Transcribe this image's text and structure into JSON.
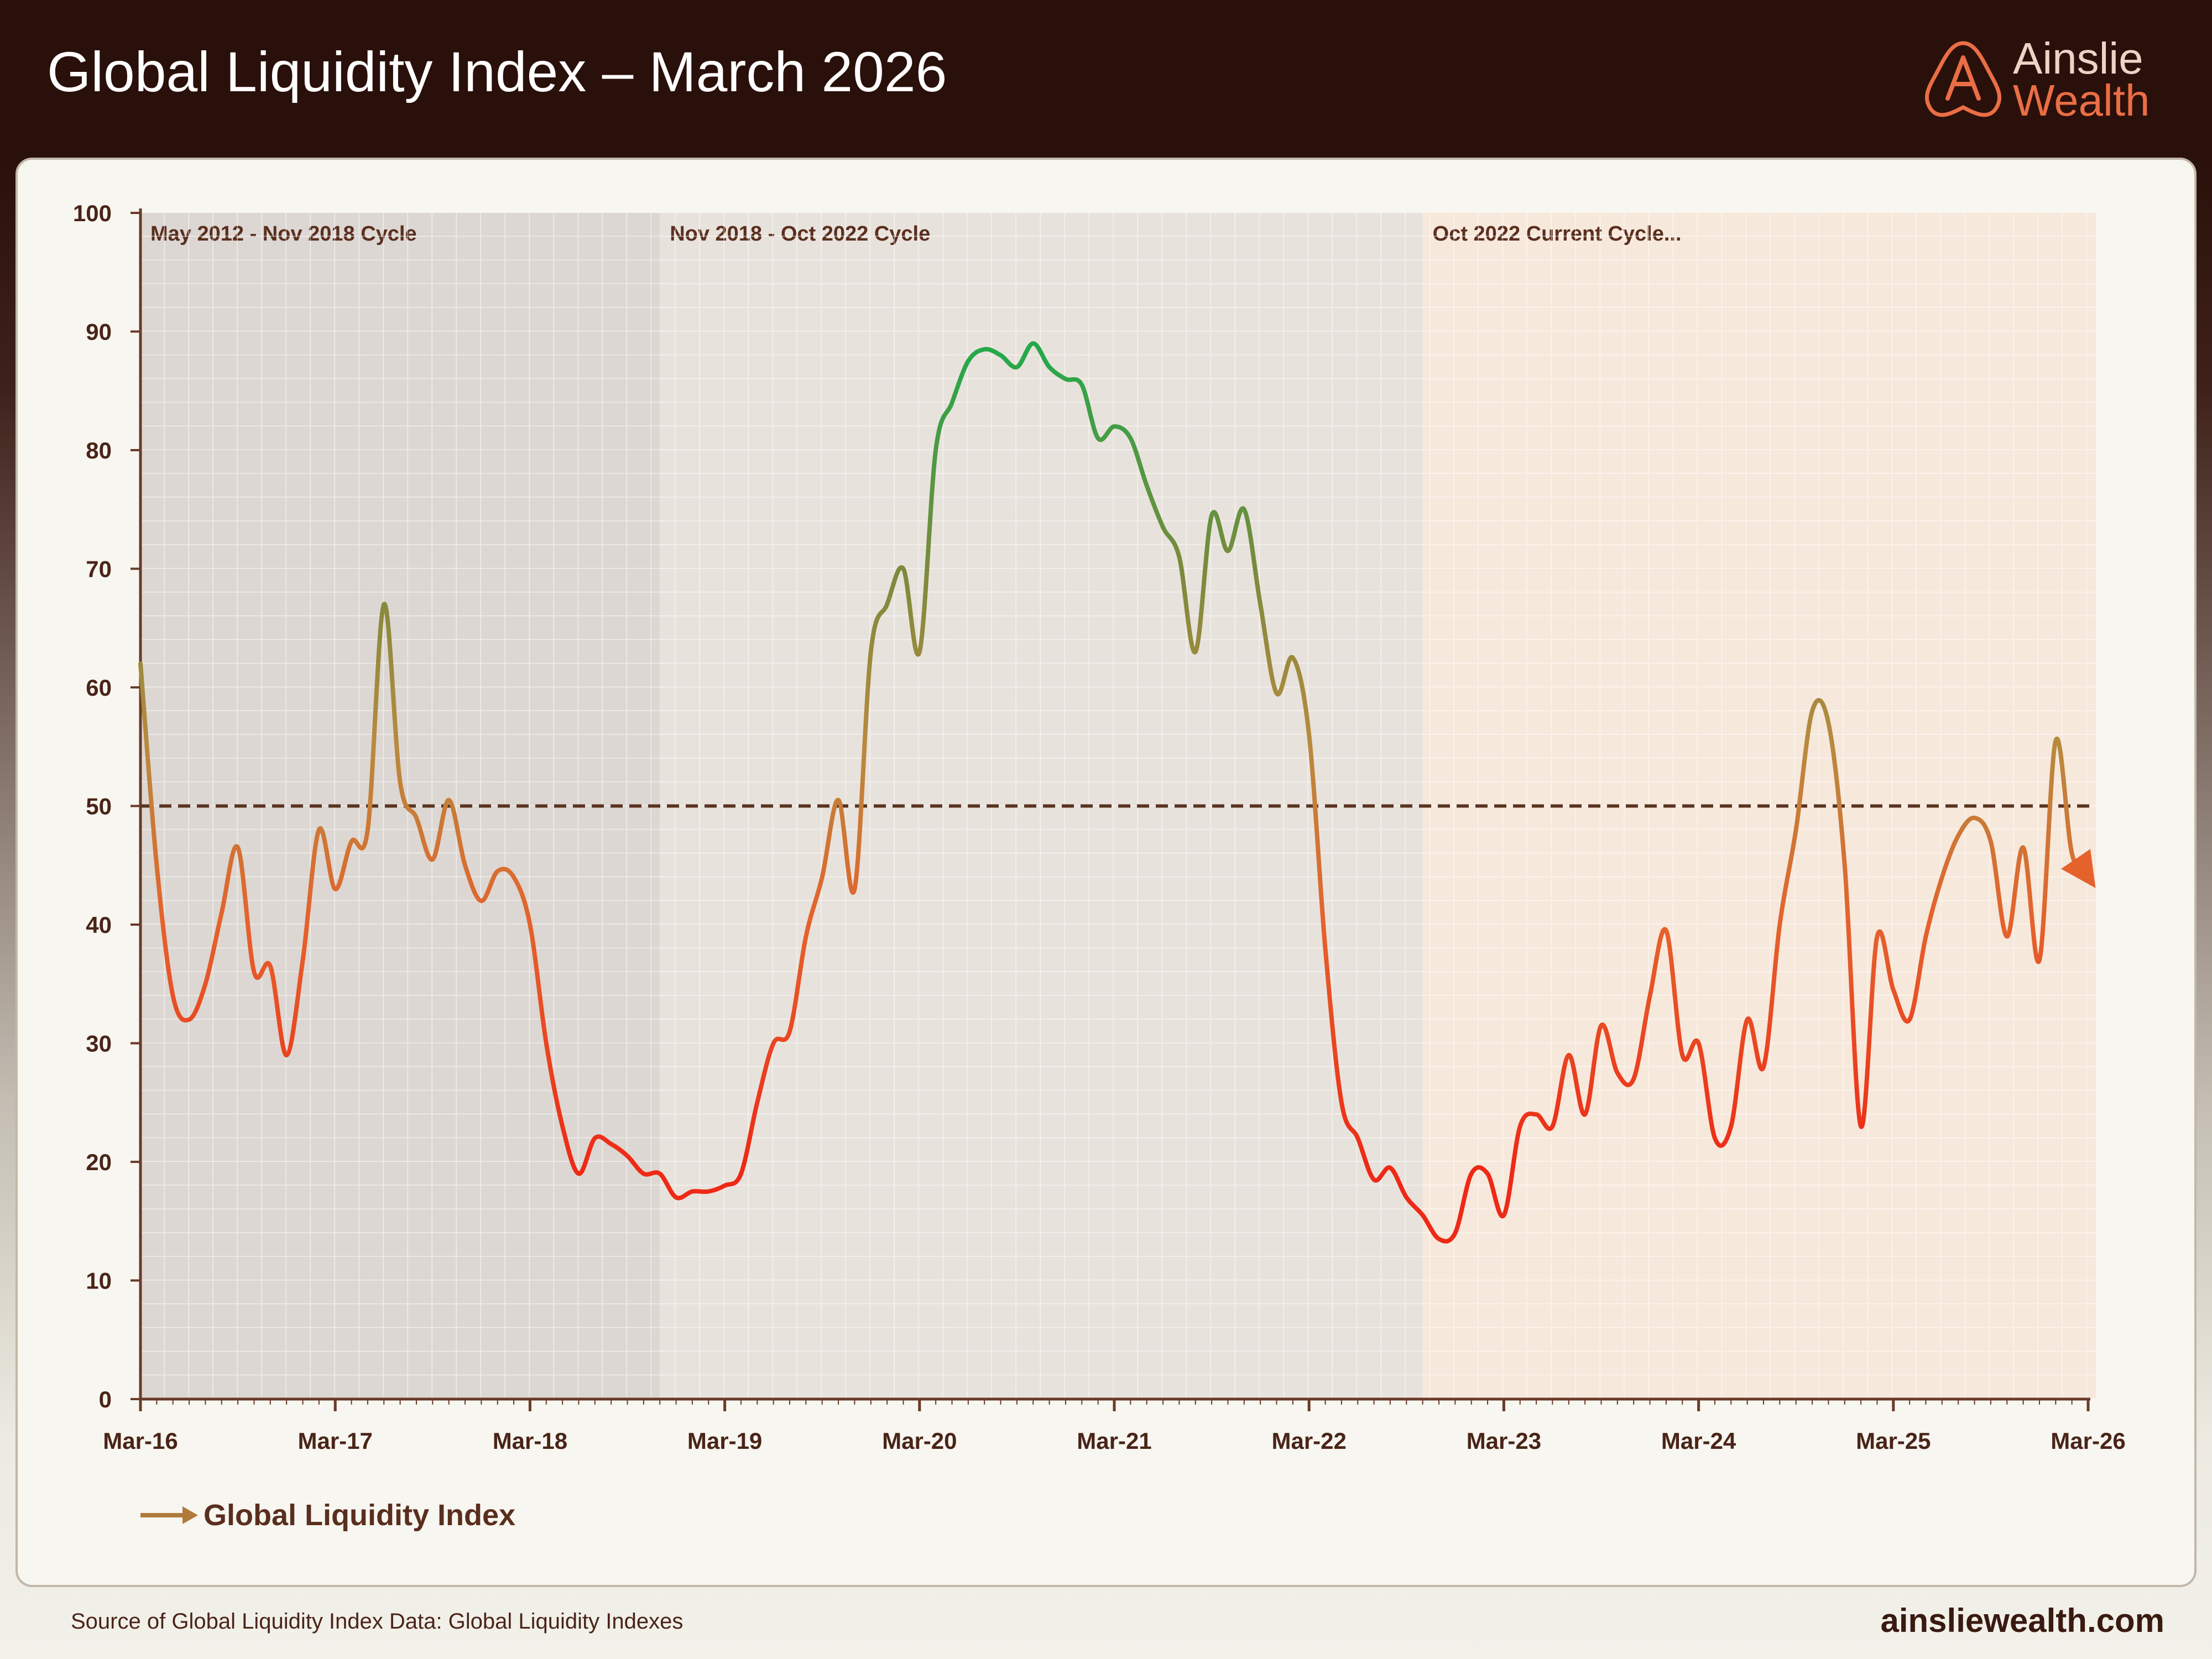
{
  "title": "Global Liquidity Index – March 2026",
  "brand": {
    "line1": "Ainslie",
    "line2": "Wealth"
  },
  "footer": {
    "source": "Source of Global Liquidity Index Data: Global Liquidity Indexes",
    "site": "ainsliewealth.com"
  },
  "colors": {
    "header_bg": "#2a100a",
    "accent": "#ea6e45",
    "high": "#26a84a",
    "mid": "#a0783c",
    "low": "#ee2a16",
    "reference_line": "#5a3421"
  },
  "chart_data": {
    "type": "line",
    "title": "Global Liquidity Index – March 2026",
    "xlabel": "",
    "ylabel": "",
    "ylim": [
      0,
      100
    ],
    "yticks": [
      0,
      10,
      20,
      30,
      40,
      50,
      60,
      70,
      80,
      90,
      100
    ],
    "xlim": [
      "2016-03",
      "2026-03"
    ],
    "xticks": [
      {
        "label": "Mar-16",
        "date": "2016-03"
      },
      {
        "label": "Mar-17",
        "date": "2017-03"
      },
      {
        "label": "Mar-18",
        "date": "2018-03"
      },
      {
        "label": "Mar-19",
        "date": "2019-03"
      },
      {
        "label": "Mar-20",
        "date": "2020-03"
      },
      {
        "label": "Mar-21",
        "date": "2021-03"
      },
      {
        "label": "Mar-22",
        "date": "2022-03"
      },
      {
        "label": "Mar-23",
        "date": "2023-03"
      },
      {
        "label": "Mar-24",
        "date": "2024-03"
      },
      {
        "label": "Mar-25",
        "date": "2025-03"
      },
      {
        "label": "Mar-26",
        "date": "2026-03"
      }
    ],
    "grid": true,
    "legend": "bottom-left",
    "reference_line": {
      "y": 50,
      "style": "dashed"
    },
    "regions": [
      {
        "label": "May 2012 - Nov 2018 Cycle",
        "start": "2016-03",
        "end": "2018-11"
      },
      {
        "label": "Nov 2018 - Oct 2022 Cycle",
        "start": "2018-11",
        "end": "2022-10"
      },
      {
        "label": "Oct 2022 Current Cycle...",
        "start": "2022-10",
        "end": "2026-03"
      }
    ],
    "series": [
      {
        "name": "Global Liquidity Index",
        "points": [
          [
            "2016-03",
            62
          ],
          [
            "2016-04",
            45
          ],
          [
            "2016-05",
            34
          ],
          [
            "2016-06",
            32
          ],
          [
            "2016-07",
            35
          ],
          [
            "2016-08",
            41
          ],
          [
            "2016-09",
            46.5
          ],
          [
            "2016-10",
            36
          ],
          [
            "2016-11",
            36.5
          ],
          [
            "2016-12",
            29
          ],
          [
            "2017-01",
            37
          ],
          [
            "2017-02",
            48
          ],
          [
            "2017-03",
            43
          ],
          [
            "2017-04",
            47
          ],
          [
            "2017-05",
            48
          ],
          [
            "2017-06",
            67
          ],
          [
            "2017-07",
            52
          ],
          [
            "2017-08",
            49
          ],
          [
            "2017-09",
            45.5
          ],
          [
            "2017-10",
            50.5
          ],
          [
            "2017-11",
            45
          ],
          [
            "2017-12",
            42
          ],
          [
            "2018-01",
            44.5
          ],
          [
            "2018-02",
            44
          ],
          [
            "2018-03",
            40
          ],
          [
            "2018-04",
            30
          ],
          [
            "2018-05",
            23
          ],
          [
            "2018-06",
            19
          ],
          [
            "2018-07",
            22
          ],
          [
            "2018-08",
            21.5
          ],
          [
            "2018-09",
            20.5
          ],
          [
            "2018-10",
            19
          ],
          [
            "2018-11",
            19
          ],
          [
            "2018-12",
            17
          ],
          [
            "2019-01",
            17.5
          ],
          [
            "2019-02",
            17.5
          ],
          [
            "2019-03",
            18
          ],
          [
            "2019-04",
            19
          ],
          [
            "2019-05",
            25
          ],
          [
            "2019-06",
            30
          ],
          [
            "2019-07",
            31
          ],
          [
            "2019-08",
            39
          ],
          [
            "2019-09",
            44
          ],
          [
            "2019-10",
            50.5
          ],
          [
            "2019-11",
            43
          ],
          [
            "2019-12",
            63
          ],
          [
            "2020-01",
            67
          ],
          [
            "2020-02",
            70
          ],
          [
            "2020-03",
            63
          ],
          [
            "2020-04",
            80
          ],
          [
            "2020-05",
            84
          ],
          [
            "2020-06",
            87.5
          ],
          [
            "2020-07",
            88.5
          ],
          [
            "2020-08",
            88
          ],
          [
            "2020-09",
            87
          ],
          [
            "2020-10",
            89
          ],
          [
            "2020-11",
            87
          ],
          [
            "2020-12",
            86
          ],
          [
            "2021-01",
            85.5
          ],
          [
            "2021-02",
            81
          ],
          [
            "2021-03",
            82
          ],
          [
            "2021-04",
            81
          ],
          [
            "2021-05",
            77
          ],
          [
            "2021-06",
            73.5
          ],
          [
            "2021-07",
            71
          ],
          [
            "2021-08",
            63
          ],
          [
            "2021-09",
            74.5
          ],
          [
            "2021-10",
            71.5
          ],
          [
            "2021-11",
            75
          ],
          [
            "2021-12",
            67
          ],
          [
            "2022-01",
            59.5
          ],
          [
            "2022-02",
            62.5
          ],
          [
            "2022-03",
            56
          ],
          [
            "2022-04",
            38
          ],
          [
            "2022-05",
            25
          ],
          [
            "2022-06",
            22
          ],
          [
            "2022-07",
            18.5
          ],
          [
            "2022-08",
            19.5
          ],
          [
            "2022-09",
            17
          ],
          [
            "2022-10",
            15.5
          ],
          [
            "2022-11",
            13.5
          ],
          [
            "2022-12",
            14
          ],
          [
            "2023-01",
            19
          ],
          [
            "2023-02",
            19
          ],
          [
            "2023-03",
            15.5
          ],
          [
            "2023-04",
            23
          ],
          [
            "2023-05",
            24
          ],
          [
            "2023-06",
            23
          ],
          [
            "2023-07",
            29
          ],
          [
            "2023-08",
            24
          ],
          [
            "2023-09",
            31.5
          ],
          [
            "2023-10",
            27.5
          ],
          [
            "2023-11",
            27
          ],
          [
            "2023-12",
            34
          ],
          [
            "2024-01",
            39.5
          ],
          [
            "2024-02",
            29
          ],
          [
            "2024-03",
            30
          ],
          [
            "2024-04",
            22
          ],
          [
            "2024-05",
            23
          ],
          [
            "2024-06",
            32
          ],
          [
            "2024-07",
            28
          ],
          [
            "2024-08",
            40
          ],
          [
            "2024-09",
            48
          ],
          [
            "2024-10",
            58
          ],
          [
            "2024-11",
            57
          ],
          [
            "2024-12",
            45
          ],
          [
            "2025-01",
            23
          ],
          [
            "2025-02",
            39
          ],
          [
            "2025-03",
            34.5
          ],
          [
            "2025-04",
            32
          ],
          [
            "2025-05",
            39
          ],
          [
            "2025-06",
            44
          ],
          [
            "2025-07",
            47.5
          ],
          [
            "2025-08",
            49
          ],
          [
            "2025-09",
            47
          ],
          [
            "2025-10",
            39
          ],
          [
            "2025-11",
            46.5
          ],
          [
            "2025-12",
            37
          ],
          [
            "2026-01",
            55.5
          ],
          [
            "2026-02",
            46
          ],
          [
            "2026-03",
            44
          ]
        ]
      }
    ]
  }
}
